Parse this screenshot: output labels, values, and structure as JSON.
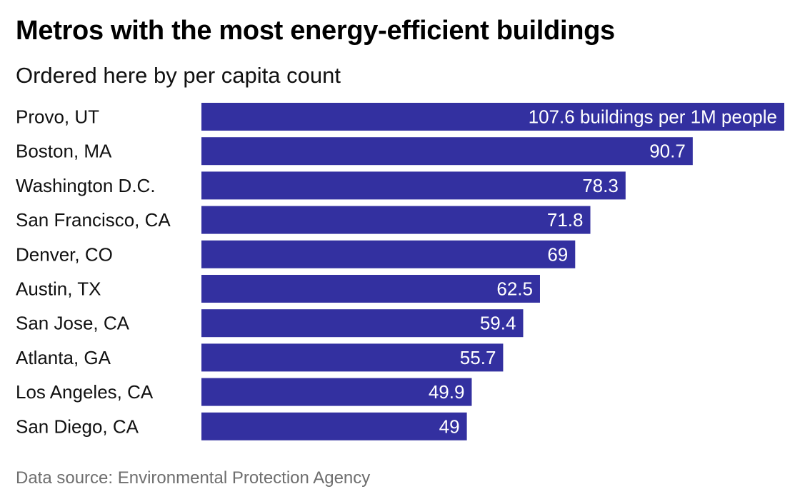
{
  "title": "Metros with the most energy-efficient buildings",
  "subtitle": "Ordered here by per capita count",
  "source": "Data source: Environmental Protection Agency",
  "colors": {
    "bar": "#3330a0",
    "label_on_bar": "#ffffff",
    "text": "#111111",
    "source": "#6e6e6e"
  },
  "chart_data": {
    "type": "bar",
    "orientation": "horizontal",
    "categories": [
      "Provo, UT",
      "Boston, MA",
      "Washington D.C.",
      "San Francisco, CA",
      "Denver, CO",
      "Austin, TX",
      "San Jose, CA",
      "Atlanta, GA",
      "Los Angeles, CA",
      "San Diego, CA"
    ],
    "values": [
      107.6,
      90.7,
      78.3,
      71.8,
      69,
      62.5,
      59.4,
      55.7,
      49.9,
      49
    ],
    "data_labels": [
      "107.6 buildings per 1M people",
      "90.7",
      "78.3",
      "71.8",
      "69",
      "62.5",
      "59.4",
      "55.7",
      "49.9",
      "49"
    ],
    "xlim": [
      0,
      107.6
    ],
    "grid": false,
    "legend": "none"
  }
}
